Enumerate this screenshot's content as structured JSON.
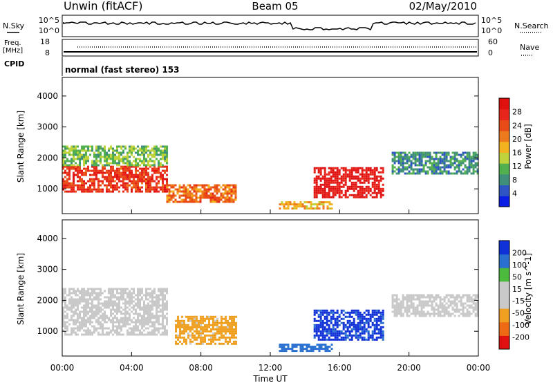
{
  "header": {
    "station": "Unwin (fitACF)",
    "beam": "Beam 05",
    "date": "02/May/2010"
  },
  "top_panels": {
    "nsky_label": "N.Sky",
    "nsky_ticks": [
      "10^5",
      "10^0"
    ],
    "nsearch_label": "N.Search",
    "nsearch_ticks": [
      "10^5",
      "10^0"
    ],
    "freq_label": "Freq.",
    "freq_unit": "[MHz]",
    "freq_ticks": [
      "18",
      "8"
    ],
    "nave_label": "Nave",
    "nave_ticks": [
      "60",
      "0"
    ],
    "cpid_label": "CPID",
    "cpid_value": "normal (fast stereo) 153"
  },
  "colors": {
    "power_scale": [
      "#0a1ee6",
      "#2f55c4",
      "#3f8f7a",
      "#52b04e",
      "#bfd43a",
      "#f3b21f",
      "#ee7a1e",
      "#e84a18",
      "#e8251a",
      "#e0100f"
    ],
    "velocity_scale": [
      "#e01010",
      "#ee6a14",
      "#f0a020",
      "#c9c9c9",
      "#c9c9c9",
      "#4cba3c",
      "#2a70d0",
      "#1030d8"
    ]
  },
  "chart_data": [
    {
      "type": "heatmap",
      "panel": "power",
      "ylabel": "Slant Range [km]",
      "y_ticks": [
        "1000",
        "2000",
        "3000",
        "4000"
      ],
      "ylim": [
        200,
        4600
      ],
      "xlim_hours": [
        0,
        24
      ],
      "colorbar_label": "Power [dB]",
      "colorbar_ticks": [
        "4",
        "8",
        "12",
        "16",
        "20",
        "24",
        "28"
      ],
      "colorbar_range": [
        0,
        32
      ],
      "regions": [
        {
          "t0": 0.0,
          "t1": 6.0,
          "r0": 900,
          "r1": 1750,
          "value": 26
        },
        {
          "t0": 0.0,
          "t1": 6.0,
          "r0": 1750,
          "r1": 2400,
          "value": 12
        },
        {
          "t0": 6.0,
          "t1": 10.0,
          "r0": 550,
          "r1": 1150,
          "value": 22
        },
        {
          "t0": 14.5,
          "t1": 18.5,
          "r0": 700,
          "r1": 1700,
          "value": 30
        },
        {
          "t0": 12.5,
          "t1": 15.5,
          "r0": 350,
          "r1": 600,
          "value": 18
        },
        {
          "t0": 19.0,
          "t1": 24.0,
          "r0": 1500,
          "r1": 2200,
          "value": 8
        }
      ]
    },
    {
      "type": "heatmap",
      "panel": "velocity",
      "ylabel": "Slant Range [km]",
      "y_ticks": [
        "1000",
        "2000",
        "3000",
        "4000"
      ],
      "ylim": [
        200,
        4600
      ],
      "xlim_hours": [
        0,
        24
      ],
      "xlabel": "Time UT",
      "x_ticks": [
        "00:00",
        "04:00",
        "08:00",
        "12:00",
        "16:00",
        "20:00",
        "00:00"
      ],
      "colorbar_label": "Velocity [m s^-1]",
      "colorbar_ticks": [
        "-200",
        "-100",
        "-50",
        "-15",
        "15",
        "50",
        "100",
        "200"
      ],
      "colorbar_range": [
        -250,
        250
      ],
      "regions": [
        {
          "t0": 0.0,
          "t1": 6.0,
          "r0": 900,
          "r1": 2400,
          "value": 0
        },
        {
          "t0": 6.5,
          "t1": 10.0,
          "r0": 600,
          "r1": 1500,
          "value": -80
        },
        {
          "t0": 14.5,
          "t1": 18.5,
          "r0": 700,
          "r1": 1700,
          "value": 200
        },
        {
          "t0": 12.5,
          "t1": 15.5,
          "r0": 350,
          "r1": 600,
          "value": 150
        },
        {
          "t0": 19.0,
          "t1": 24.0,
          "r0": 1500,
          "r1": 2200,
          "value": 0
        }
      ]
    }
  ]
}
